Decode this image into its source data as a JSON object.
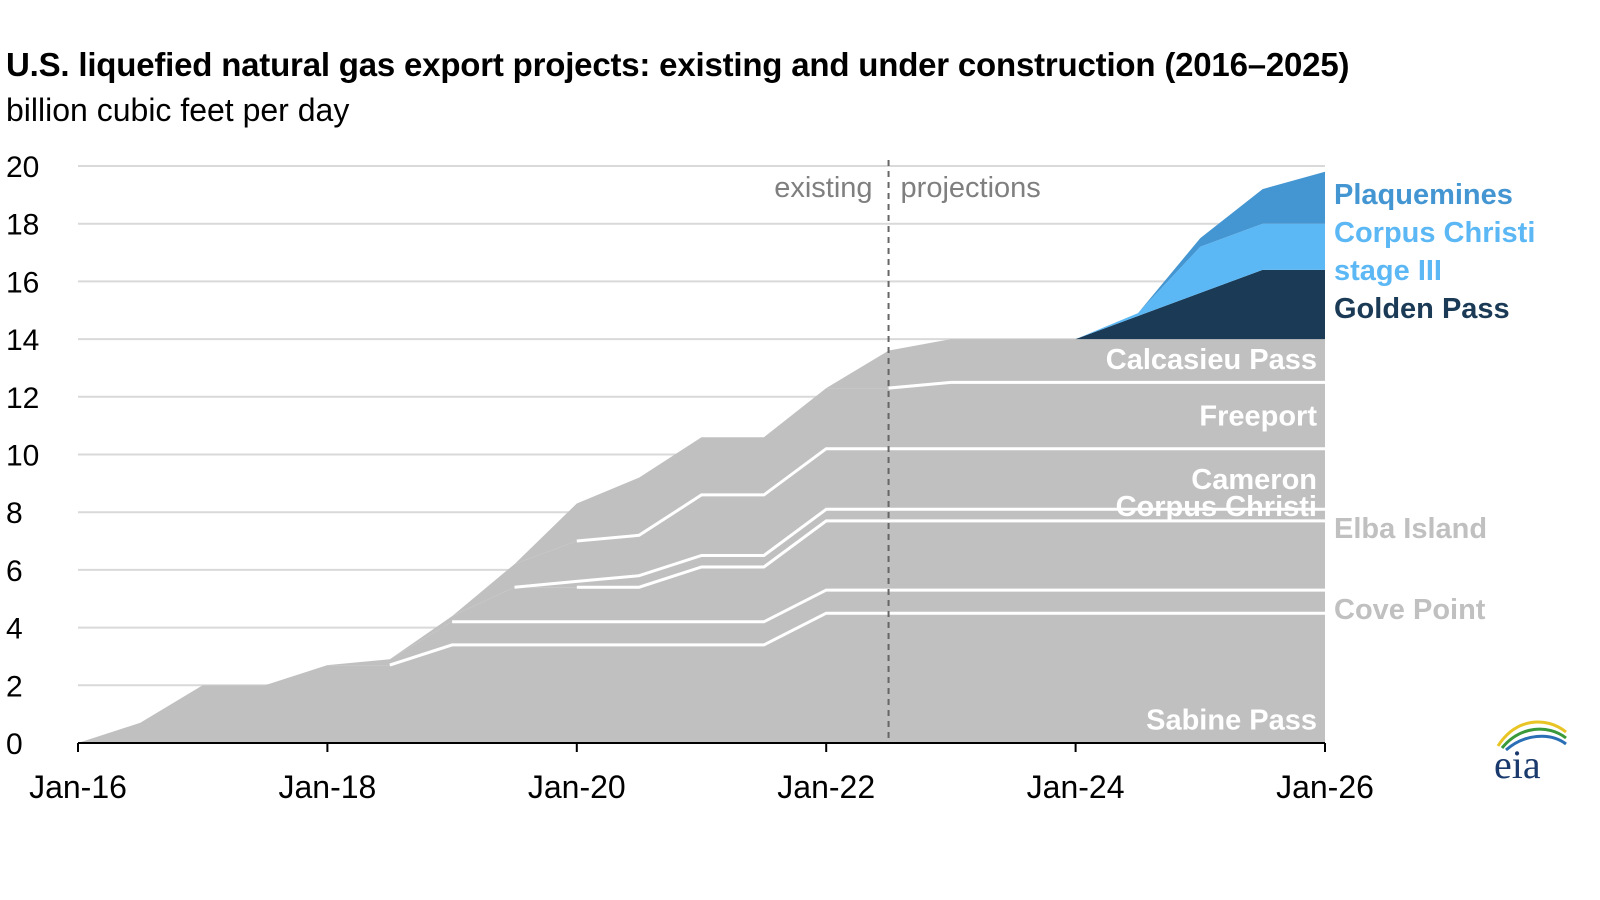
{
  "title": "U.S. liquefied natural gas export projects: existing and under construction (2016–2025)",
  "subtitle": "billion cubic feet per day",
  "logo_text": "eia",
  "colors": {
    "existing": "#c0c0c0",
    "golden_pass": "#1a3a56",
    "corpus_christi_stage_iii": "#5cb8f5",
    "plaquemines": "#4496d2",
    "outside_label_gray": "#c0c0c0",
    "grid": "#d9d9d9",
    "divider": "#666666"
  },
  "chart_data": {
    "type": "area",
    "stacked": true,
    "title": "U.S. liquefied natural gas export projects: existing and under construction (2016–2025)",
    "ylabel": "billion cubic feet per day",
    "ylim": [
      0,
      20
    ],
    "yticks": [
      0,
      2,
      4,
      6,
      8,
      10,
      12,
      14,
      16,
      18,
      20
    ],
    "xlim": [
      "2016-01",
      "2026-01"
    ],
    "xticks": [
      "Jan-16",
      "Jan-18",
      "Jan-20",
      "Jan-22",
      "Jan-24",
      "Jan-26"
    ],
    "grid": true,
    "divider": {
      "x": "2022-07",
      "left_label": "existing",
      "right_label": "projections"
    },
    "x": [
      "2016-01",
      "2016-07",
      "2017-01",
      "2017-07",
      "2018-01",
      "2018-07",
      "2019-01",
      "2019-07",
      "2020-01",
      "2020-07",
      "2021-01",
      "2021-07",
      "2022-01",
      "2022-07",
      "2023-01",
      "2023-07",
      "2024-01",
      "2024-07",
      "2025-01",
      "2025-07",
      "2026-01"
    ],
    "series": [
      {
        "name": "Sabine Pass",
        "label_position": "inside",
        "values": [
          0,
          0.7,
          2.0,
          2.0,
          2.7,
          2.7,
          3.4,
          3.4,
          3.4,
          3.4,
          3.4,
          3.4,
          4.5,
          4.5,
          4.5,
          4.5,
          4.5,
          4.5,
          4.5,
          4.5,
          4.5
        ]
      },
      {
        "name": "Cove Point",
        "label_position": "right",
        "values": [
          0,
          0,
          0,
          0,
          0,
          0.2,
          0.8,
          0.8,
          0.8,
          0.8,
          0.8,
          0.8,
          0.8,
          0.8,
          0.8,
          0.8,
          0.8,
          0.8,
          0.8,
          0.8,
          0.8
        ]
      },
      {
        "name": "Corpus Christi",
        "label_position": "inside",
        "values": [
          0,
          0,
          0,
          0,
          0,
          0,
          0.2,
          1.2,
          1.2,
          1.2,
          1.9,
          1.9,
          2.4,
          2.4,
          2.4,
          2.4,
          2.4,
          2.4,
          2.4,
          2.4,
          2.4
        ]
      },
      {
        "name": "Elba Island",
        "label_position": "right",
        "values": [
          0,
          0,
          0,
          0,
          0,
          0,
          0,
          0,
          0.2,
          0.4,
          0.4,
          0.4,
          0.4,
          0.4,
          0.4,
          0.4,
          0.4,
          0.4,
          0.4,
          0.4,
          0.4
        ]
      },
      {
        "name": "Cameron",
        "label_position": "inside",
        "values": [
          0,
          0,
          0,
          0,
          0,
          0,
          0,
          0.8,
          1.4,
          1.4,
          2.1,
          2.1,
          2.1,
          2.1,
          2.1,
          2.1,
          2.1,
          2.1,
          2.1,
          2.1,
          2.1
        ]
      },
      {
        "name": "Freeport",
        "label_position": "inside",
        "values": [
          0,
          0,
          0,
          0,
          0,
          0,
          0,
          0,
          1.3,
          2.0,
          2.0,
          2.0,
          2.1,
          2.1,
          2.3,
          2.3,
          2.3,
          2.3,
          2.3,
          2.3,
          2.3
        ]
      },
      {
        "name": "Calcasieu Pass",
        "label_position": "inside",
        "values": [
          0,
          0,
          0,
          0,
          0,
          0,
          0,
          0,
          0,
          0,
          0,
          0,
          0,
          1.3,
          1.5,
          1.5,
          1.5,
          1.5,
          1.5,
          1.5,
          1.5
        ]
      },
      {
        "name": "Golden Pass",
        "label_position": "right",
        "values": [
          0,
          0,
          0,
          0,
          0,
          0,
          0,
          0,
          0,
          0,
          0,
          0,
          0,
          0,
          0,
          0,
          0,
          0.8,
          1.6,
          2.4,
          2.4
        ]
      },
      {
        "name": "Corpus Christi stage III",
        "label_display": [
          "Corpus Christi",
          "stage III"
        ],
        "label_position": "right",
        "values": [
          0,
          0,
          0,
          0,
          0,
          0,
          0,
          0,
          0,
          0,
          0,
          0,
          0,
          0,
          0,
          0,
          0,
          0.1,
          1.6,
          1.6,
          1.6
        ]
      },
      {
        "name": "Plaquemines",
        "label_position": "right",
        "values": [
          0,
          0,
          0,
          0,
          0,
          0,
          0,
          0,
          0,
          0,
          0,
          0,
          0,
          0,
          0,
          0,
          0,
          0,
          0.3,
          1.2,
          1.8
        ]
      }
    ]
  }
}
